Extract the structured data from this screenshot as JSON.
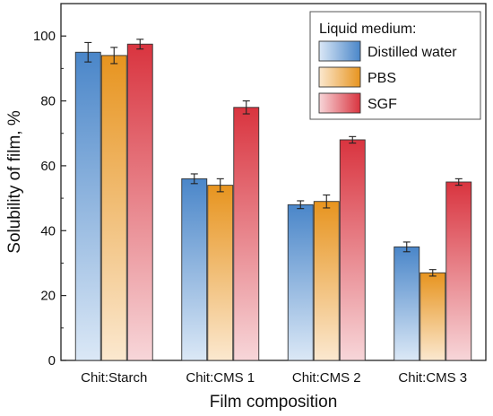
{
  "chart_data": {
    "type": "bar",
    "categories": [
      "Chit:Starch",
      "Chit:CMS 1",
      "Chit:CMS 2",
      "Chit:CMS 3"
    ],
    "series": [
      {
        "name": "Distilled water",
        "values": [
          95,
          56,
          48,
          35
        ],
        "errors": [
          3,
          1.5,
          1.2,
          1.5
        ],
        "color": "#4a86c9",
        "color_light": "#dbe8f6"
      },
      {
        "name": "PBS",
        "values": [
          94,
          54,
          49,
          27
        ],
        "errors": [
          2.5,
          2,
          2,
          1
        ],
        "color": "#e7941f",
        "color_light": "#fbe8cf"
      },
      {
        "name": "SGF",
        "values": [
          97.5,
          78,
          68,
          55
        ],
        "errors": [
          1.5,
          2,
          1,
          1
        ],
        "color": "#d9343f",
        "color_light": "#f7d6d9"
      }
    ],
    "xlabel": "Film composition",
    "ylabel": "Solubility of film, %",
    "ylim": [
      0,
      110
    ],
    "yticks": [
      0,
      20,
      40,
      60,
      80,
      100
    ],
    "legend_title": "Liquid medium:",
    "legend_position": "top-right",
    "grid": false
  }
}
